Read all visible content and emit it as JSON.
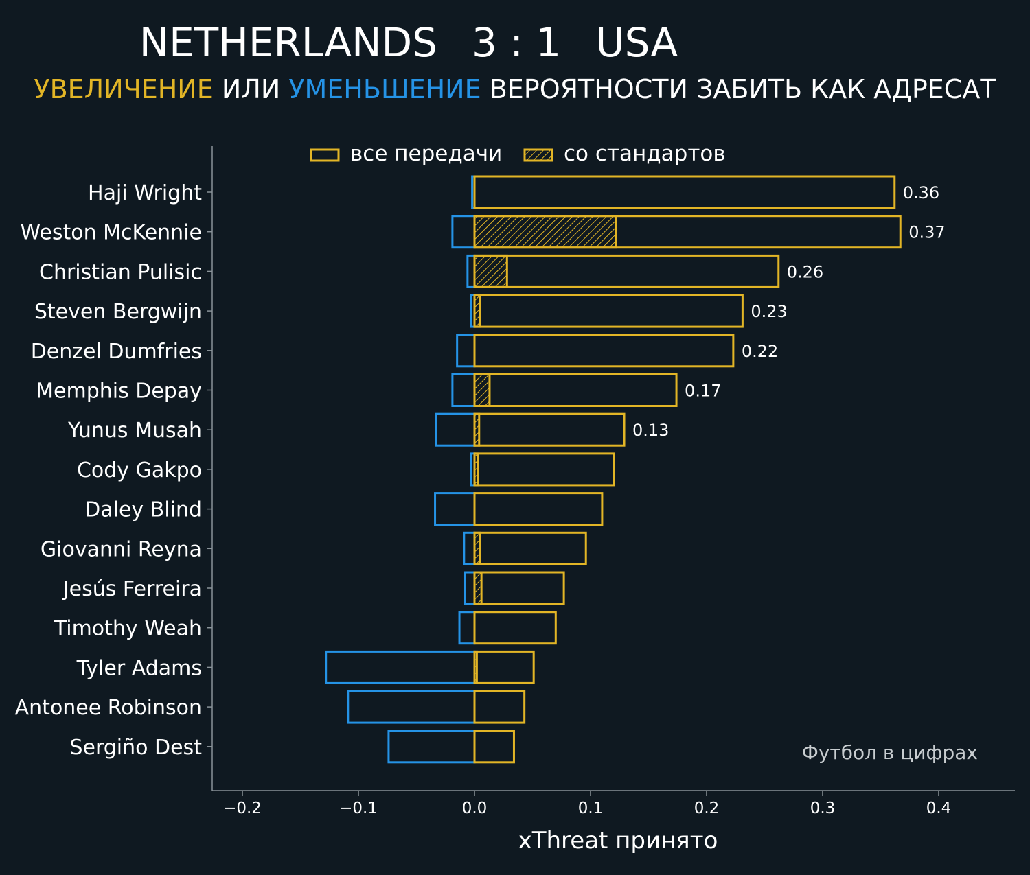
{
  "header": {
    "home_team": "NETHERLANDS",
    "score": "3 : 1",
    "away_team": "USA",
    "subtitle_increase": "УВЕЛИЧЕНИЕ",
    "subtitle_or": "ИЛИ",
    "subtitle_decrease": "УМЕНЬШЕНИЕ",
    "subtitle_rest": "ВЕРОЯТНОСТИ ЗАБИТЬ КАК АДРЕСАТ"
  },
  "colors": {
    "background": "#0f1921",
    "positive": "#e2b526",
    "negative": "#2593e6",
    "axis": "#8a9399",
    "text": "#ffffff",
    "watermark": "#c8cdd0"
  },
  "chart_data": {
    "type": "bar",
    "orientation": "horizontal",
    "xlabel": "xThreat принято",
    "xlim": [
      -0.225,
      0.465
    ],
    "xticks": [
      -0.2,
      -0.1,
      0.0,
      0.1,
      0.2,
      0.3,
      0.4
    ],
    "xtick_labels": [
      "−0.2",
      "−0.1",
      "0.0",
      "0.1",
      "0.2",
      "0.3",
      "0.4"
    ],
    "legend": {
      "position": "top-center",
      "all_passes": "все передачи",
      "set_pieces": "со стандартов"
    },
    "watermark": "Футбол в цифрах",
    "players": [
      "Haji Wright",
      "Weston McKennie",
      "Christian Pulisic",
      "Steven Bergwijn",
      "Denzel Dumfries",
      "Memphis Depay",
      "Yunus Musah",
      "Cody Gakpo",
      "Daley Blind",
      "Giovanni Reyna",
      "Jesús Ferreira",
      "Timothy Weah",
      "Tyler Adams",
      "Antonee Robinson",
      "Sergiño Dest"
    ],
    "series": [
      {
        "name": "positive",
        "values": [
          0.362,
          0.367,
          0.262,
          0.231,
          0.223,
          0.174,
          0.129,
          0.12,
          0.11,
          0.096,
          0.077,
          0.07,
          0.051,
          0.043,
          0.034
        ]
      },
      {
        "name": "negative",
        "values": [
          -0.002,
          -0.019,
          -0.006,
          -0.003,
          -0.015,
          -0.019,
          -0.033,
          -0.003,
          -0.034,
          -0.009,
          -0.008,
          -0.013,
          -0.128,
          -0.109,
          -0.074
        ]
      },
      {
        "name": "set_pieces",
        "values": [
          0.0,
          0.122,
          0.028,
          0.005,
          0.0,
          0.013,
          0.004,
          0.003,
          0.0,
          0.005,
          0.006,
          0.0,
          0.002,
          0.0,
          0.0
        ]
      }
    ],
    "value_labels": [
      "0.36",
      "0.37",
      "0.26",
      "0.23",
      "0.22",
      "0.17",
      "0.13",
      "",
      "",
      "",
      "",
      "",
      "",
      "",
      ""
    ]
  }
}
